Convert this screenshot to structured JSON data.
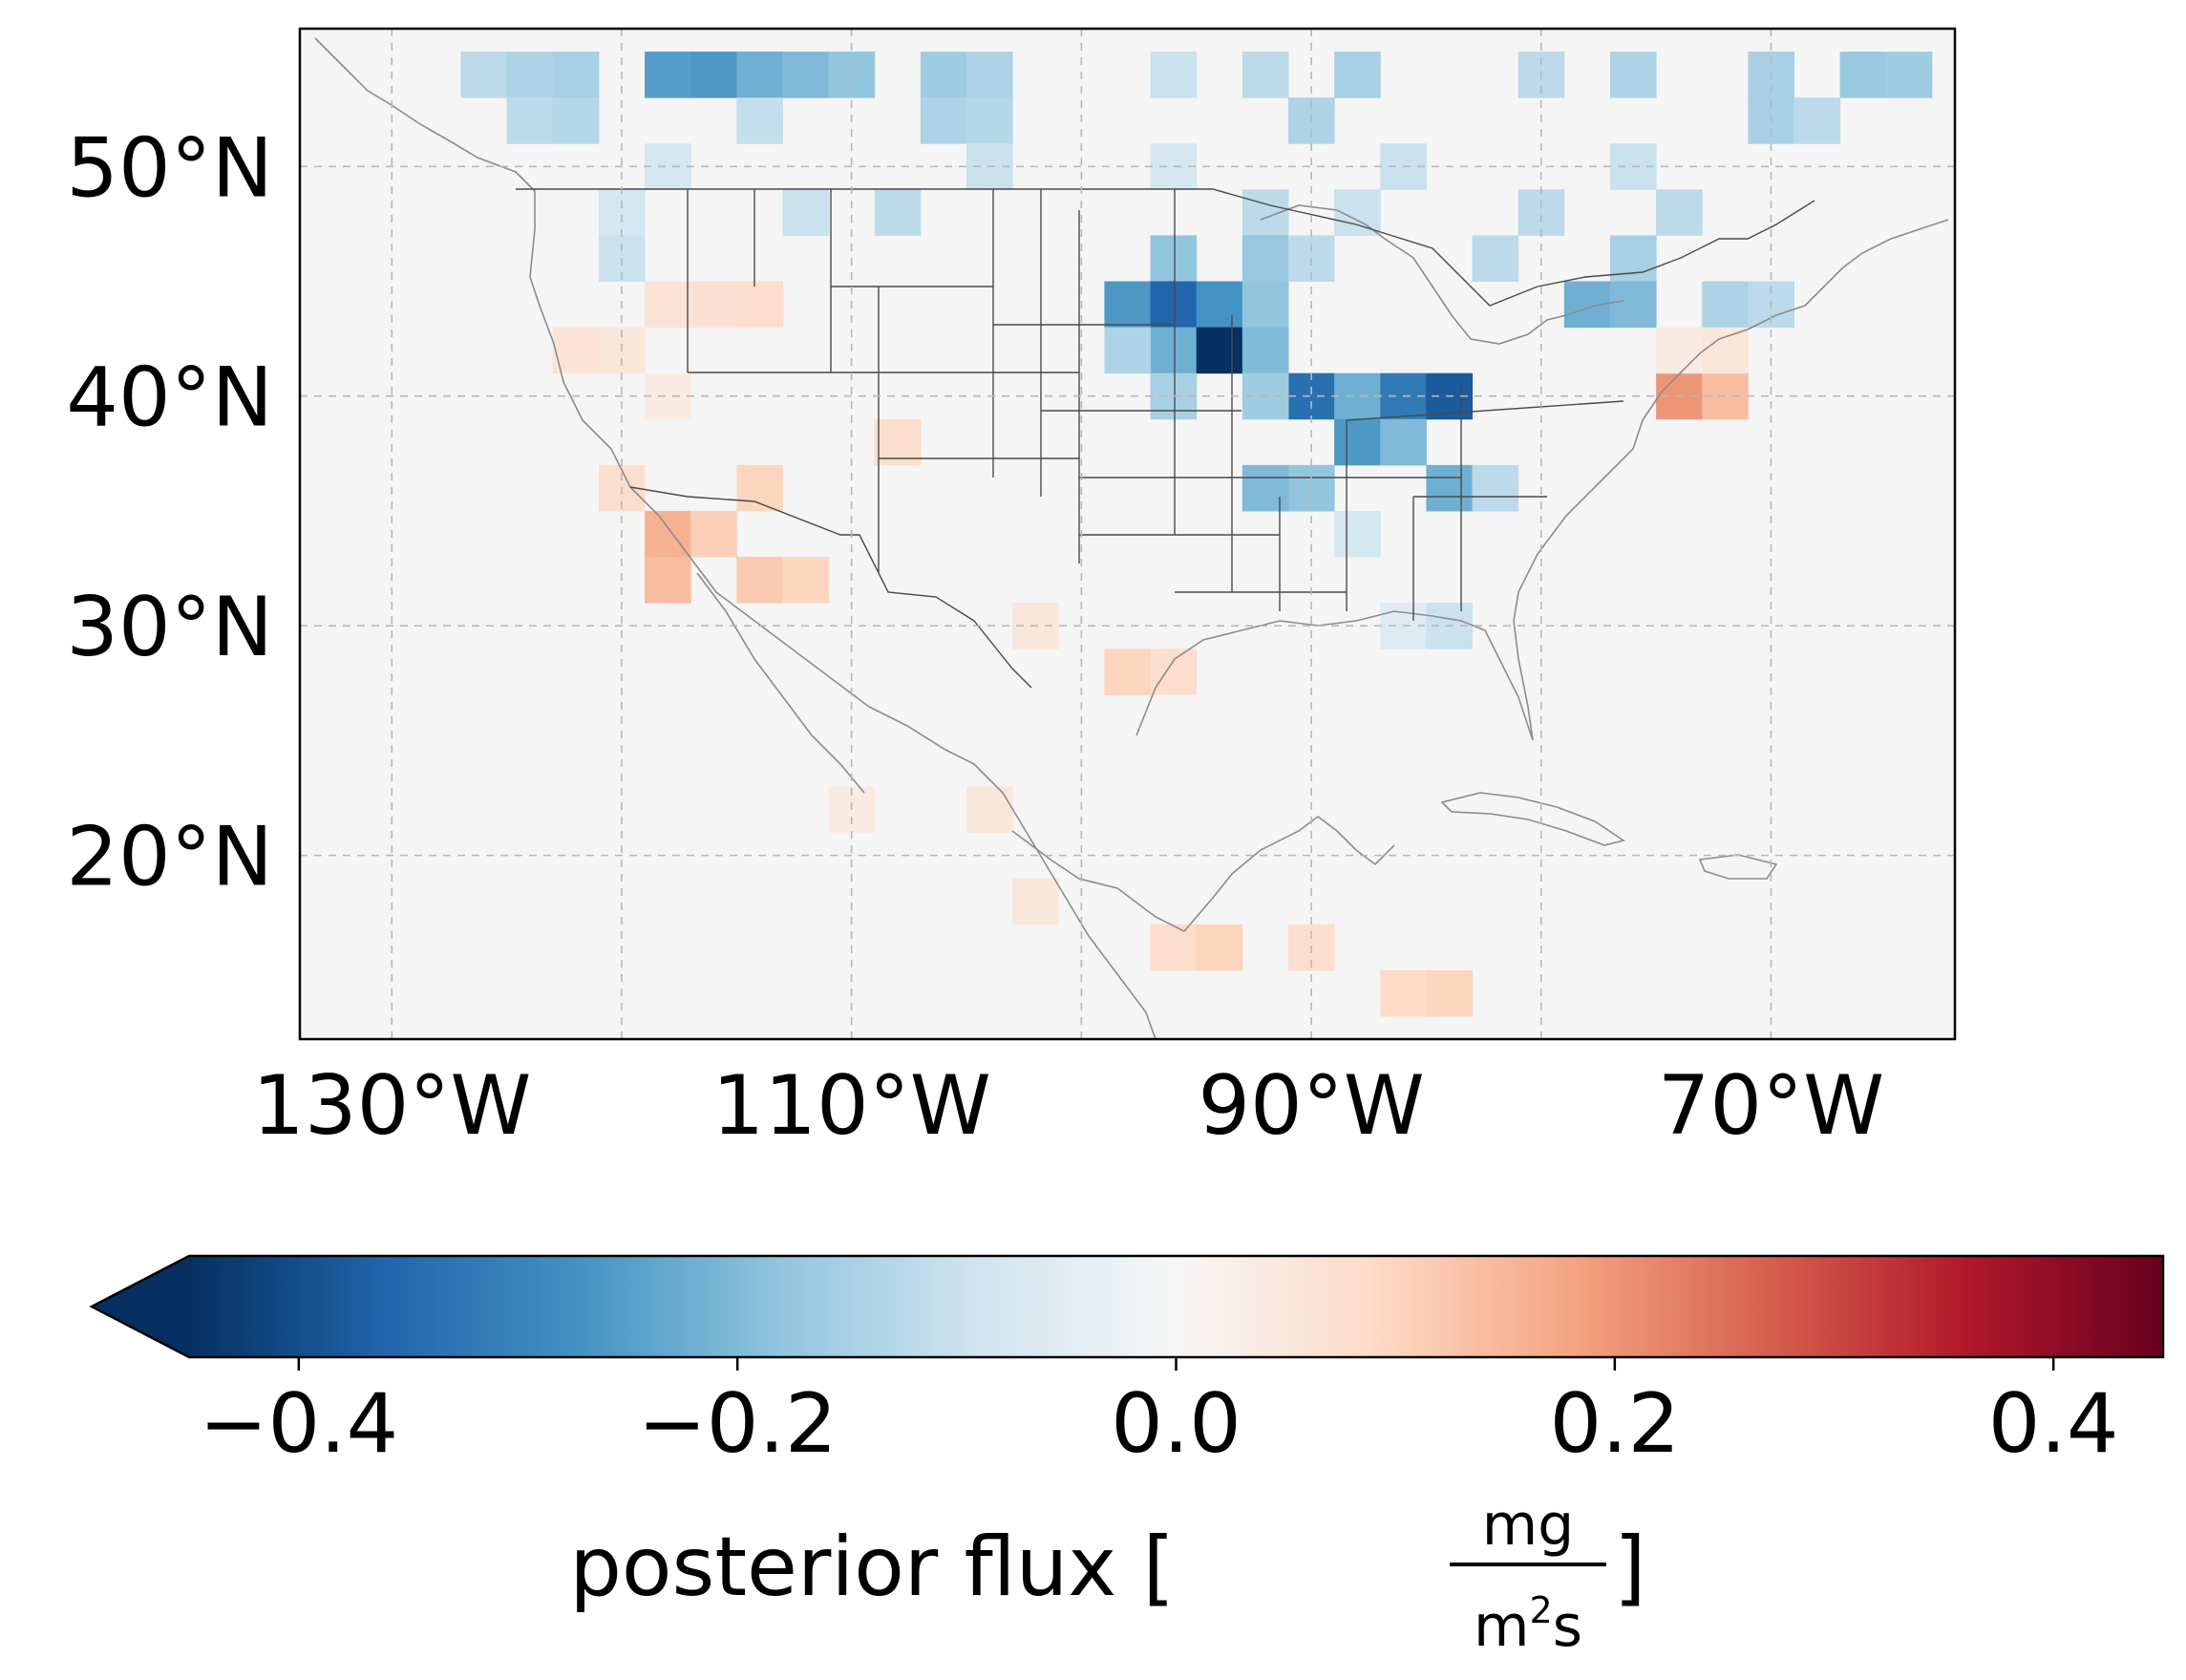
{
  "chart_data": {
    "type": "heatmap",
    "projection": "plate carree",
    "xlim": [
      -134,
      -62
    ],
    "ylim": [
      12,
      56
    ],
    "grid": true,
    "lon_ticks": [
      -130,
      -110,
      -90,
      -70
    ],
    "lat_ticks": [
      20,
      30,
      40,
      50
    ],
    "lon_tick_labels": [
      "130°W",
      "110°W",
      "90°W",
      "70°W"
    ],
    "lat_tick_labels": [
      "20°N",
      "30°N",
      "40°N",
      "50°N"
    ],
    "cell_size_deg": [
      2,
      2
    ],
    "default_value": 0.0,
    "cells": [
      {
        "lon": -122,
        "lat": 54,
        "value": -0.15
      },
      {
        "lon": -118,
        "lat": 54,
        "value": -0.25
      },
      {
        "lon": -116,
        "lat": 54,
        "value": -0.26
      },
      {
        "lon": -114,
        "lat": 54,
        "value": -0.22
      },
      {
        "lon": -126,
        "lat": 54,
        "value": -0.12
      },
      {
        "lon": -124,
        "lat": 54,
        "value": -0.14
      },
      {
        "lon": -112,
        "lat": 54,
        "value": -0.2
      },
      {
        "lon": -110,
        "lat": 54,
        "value": -0.18
      },
      {
        "lon": -106,
        "lat": 54,
        "value": -0.16
      },
      {
        "lon": -104,
        "lat": 54,
        "value": -0.14
      },
      {
        "lon": -96,
        "lat": 54,
        "value": -0.1
      },
      {
        "lon": -92,
        "lat": 54,
        "value": -0.12
      },
      {
        "lon": -88,
        "lat": 54,
        "value": -0.15
      },
      {
        "lon": -80,
        "lat": 54,
        "value": -0.12
      },
      {
        "lon": -76,
        "lat": 54,
        "value": -0.14
      },
      {
        "lon": -70,
        "lat": 54,
        "value": -0.15
      },
      {
        "lon": -66,
        "lat": 54,
        "value": -0.17
      },
      {
        "lon": -64,
        "lat": 54,
        "value": -0.16
      },
      {
        "lon": -124,
        "lat": 52,
        "value": -0.12
      },
      {
        "lon": -122,
        "lat": 52,
        "value": -0.13
      },
      {
        "lon": -114,
        "lat": 52,
        "value": -0.11
      },
      {
        "lon": -106,
        "lat": 52,
        "value": -0.14
      },
      {
        "lon": -104,
        "lat": 52,
        "value": -0.13
      },
      {
        "lon": -90,
        "lat": 52,
        "value": -0.14
      },
      {
        "lon": -70,
        "lat": 52,
        "value": -0.15
      },
      {
        "lon": -68,
        "lat": 52,
        "value": -0.12
      },
      {
        "lon": -118,
        "lat": 50,
        "value": -0.08
      },
      {
        "lon": -104,
        "lat": 50,
        "value": -0.1
      },
      {
        "lon": -96,
        "lat": 50,
        "value": -0.08
      },
      {
        "lon": -86,
        "lat": 50,
        "value": -0.1
      },
      {
        "lon": -76,
        "lat": 50,
        "value": -0.1
      },
      {
        "lon": -120,
        "lat": 48,
        "value": -0.08
      },
      {
        "lon": -112,
        "lat": 48,
        "value": -0.1
      },
      {
        "lon": -108,
        "lat": 48,
        "value": -0.12
      },
      {
        "lon": -92,
        "lat": 48,
        "value": -0.12
      },
      {
        "lon": -88,
        "lat": 48,
        "value": -0.1
      },
      {
        "lon": -80,
        "lat": 48,
        "value": -0.12
      },
      {
        "lon": -74,
        "lat": 48,
        "value": -0.12
      },
      {
        "lon": -120,
        "lat": 46,
        "value": -0.1
      },
      {
        "lon": -96,
        "lat": 46,
        "value": -0.18
      },
      {
        "lon": -92,
        "lat": 46,
        "value": -0.17
      },
      {
        "lon": -90,
        "lat": 46,
        "value": -0.12
      },
      {
        "lon": -82,
        "lat": 46,
        "value": -0.12
      },
      {
        "lon": -76,
        "lat": 46,
        "value": -0.15
      },
      {
        "lon": -78,
        "lat": 44,
        "value": -0.22
      },
      {
        "lon": -76,
        "lat": 44,
        "value": -0.2
      },
      {
        "lon": -72,
        "lat": 44,
        "value": -0.14
      },
      {
        "lon": -70,
        "lat": 44,
        "value": -0.12
      },
      {
        "lon": -98,
        "lat": 44,
        "value": -0.26
      },
      {
        "lon": -96,
        "lat": 44,
        "value": -0.36
      },
      {
        "lon": -94,
        "lat": 44,
        "value": -0.27
      },
      {
        "lon": -92,
        "lat": 44,
        "value": -0.18
      },
      {
        "lon": -96,
        "lat": 42,
        "value": -0.22
      },
      {
        "lon": -94,
        "lat": 42,
        "value": -0.45
      },
      {
        "lon": -92,
        "lat": 42,
        "value": -0.2
      },
      {
        "lon": -98,
        "lat": 42,
        "value": -0.14
      },
      {
        "lon": -90,
        "lat": 40,
        "value": -0.34
      },
      {
        "lon": -88,
        "lat": 40,
        "value": -0.22
      },
      {
        "lon": -86,
        "lat": 40,
        "value": -0.32
      },
      {
        "lon": -84,
        "lat": 40,
        "value": -0.38
      },
      {
        "lon": -96,
        "lat": 40,
        "value": -0.15
      },
      {
        "lon": -92,
        "lat": 40,
        "value": -0.16
      },
      {
        "lon": -88,
        "lat": 38,
        "value": -0.26
      },
      {
        "lon": -86,
        "lat": 38,
        "value": -0.2
      },
      {
        "lon": -84,
        "lat": 36,
        "value": -0.22
      },
      {
        "lon": -90,
        "lat": 36,
        "value": -0.18
      },
      {
        "lon": -92,
        "lat": 36,
        "value": -0.2
      },
      {
        "lon": -82,
        "lat": 36,
        "value": -0.12
      },
      {
        "lon": -88,
        "lat": 34,
        "value": -0.08
      },
      {
        "lon": -86,
        "lat": 30,
        "value": -0.06
      },
      {
        "lon": -84,
        "lat": 30,
        "value": -0.1
      },
      {
        "lon": -120,
        "lat": 42,
        "value": 0.05
      },
      {
        "lon": -118,
        "lat": 44,
        "value": 0.06
      },
      {
        "lon": -116,
        "lat": 44,
        "value": 0.07
      },
      {
        "lon": -114,
        "lat": 44,
        "value": 0.08
      },
      {
        "lon": -122,
        "lat": 42,
        "value": 0.06
      },
      {
        "lon": -118,
        "lat": 40,
        "value": 0.04
      },
      {
        "lon": -108,
        "lat": 38,
        "value": 0.08
      },
      {
        "lon": -114,
        "lat": 36,
        "value": 0.1
      },
      {
        "lon": -120,
        "lat": 36,
        "value": 0.08
      },
      {
        "lon": -118,
        "lat": 34,
        "value": 0.16
      },
      {
        "lon": -116,
        "lat": 34,
        "value": 0.11
      },
      {
        "lon": -118,
        "lat": 32,
        "value": 0.14
      },
      {
        "lon": -114,
        "lat": 32,
        "value": 0.12
      },
      {
        "lon": -112,
        "lat": 32,
        "value": 0.1
      },
      {
        "lon": -102,
        "lat": 30,
        "value": 0.05
      },
      {
        "lon": -98,
        "lat": 28,
        "value": 0.1
      },
      {
        "lon": -96,
        "lat": 28,
        "value": 0.08
      },
      {
        "lon": -104,
        "lat": 22,
        "value": 0.05
      },
      {
        "lon": -102,
        "lat": 18,
        "value": 0.05
      },
      {
        "lon": -96,
        "lat": 16,
        "value": 0.08
      },
      {
        "lon": -94,
        "lat": 16,
        "value": 0.1
      },
      {
        "lon": -90,
        "lat": 16,
        "value": 0.08
      },
      {
        "lon": -86,
        "lat": 14,
        "value": 0.09
      },
      {
        "lon": -84,
        "lat": 14,
        "value": 0.1
      },
      {
        "lon": -74,
        "lat": 40,
        "value": 0.2
      },
      {
        "lon": -72,
        "lat": 40,
        "value": 0.14
      },
      {
        "lon": -72,
        "lat": 42,
        "value": 0.05
      },
      {
        "lon": -74,
        "lat": 42,
        "value": 0.04
      },
      {
        "lon": -110,
        "lat": 22,
        "value": 0.04
      }
    ],
    "colorbar": {
      "cmap": "RdBu_r",
      "vmin": -0.45,
      "vmax": 0.45,
      "extend": "min",
      "ticks": [
        -0.4,
        -0.2,
        0.0,
        0.2,
        0.4
      ],
      "tick_labels": [
        "−0.4",
        "−0.2",
        "0.0",
        "0.2",
        "0.4"
      ],
      "label_text": "posterior flux [",
      "label_unit_numerator": "mg",
      "label_unit_denominator_base": "m",
      "label_unit_denominator_exp": "2",
      "label_unit_denominator_tail": "s",
      "label_close": "]"
    },
    "colors": {
      "background": "#f5f5f5",
      "state_lines": "#4a4a4a",
      "coastlines": "#8c8c8c",
      "gridlines": "#b8b8b8",
      "frame": "#000000"
    }
  }
}
